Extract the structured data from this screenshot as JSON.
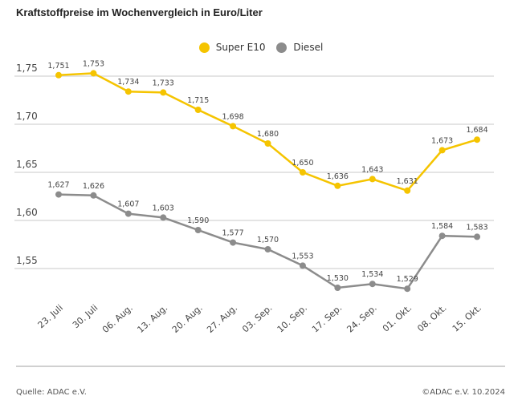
{
  "chart_data": {
    "type": "line",
    "title": "Kraftstoffpreise im Wochenvergleich in Euro/Liter",
    "categories": [
      "23. Juli",
      "30. Juli",
      "06. Aug.",
      "13. Aug.",
      "20. Aug.",
      "27. Aug.",
      "03. Sep.",
      "10. Sep.",
      "17. Sep.",
      "24. Sep.",
      "01. Okt.",
      "08. Okt.",
      "15. Okt."
    ],
    "series": [
      {
        "name": "Super E10",
        "color": "#f5c400",
        "values": [
          1.751,
          1.753,
          1.734,
          1.733,
          1.715,
          1.698,
          1.68,
          1.65,
          1.636,
          1.643,
          1.631,
          1.673,
          1.684
        ],
        "labels": [
          "1,751",
          "1,753",
          "1,734",
          "1,733",
          "1,715",
          "1,698",
          "1,680",
          "1,650",
          "1,636",
          "1,643",
          "1,631",
          "1,673",
          "1,684"
        ]
      },
      {
        "name": "Diesel",
        "color": "#8c8c8c",
        "values": [
          1.627,
          1.626,
          1.607,
          1.603,
          1.59,
          1.577,
          1.57,
          1.553,
          1.53,
          1.534,
          1.529,
          1.584,
          1.583
        ],
        "labels": [
          "1,627",
          "1,626",
          "1,607",
          "1,603",
          "1,590",
          "1,577",
          "1,570",
          "1,553",
          "1,530",
          "1,534",
          "1,529",
          "1,584",
          "1,583"
        ]
      }
    ],
    "yticks": [
      1.75,
      1.7,
      1.65,
      1.6,
      1.55
    ],
    "ytick_labels": [
      "1,75",
      "1,70",
      "1,65",
      "1,60",
      "1,55"
    ],
    "ylim": [
      1.52,
      1.78
    ],
    "grid": true,
    "legend": "top-center"
  },
  "footer": {
    "source": "Quelle: ADAC e.V.",
    "copyright": "©ADAC e.V. 10.2024"
  }
}
